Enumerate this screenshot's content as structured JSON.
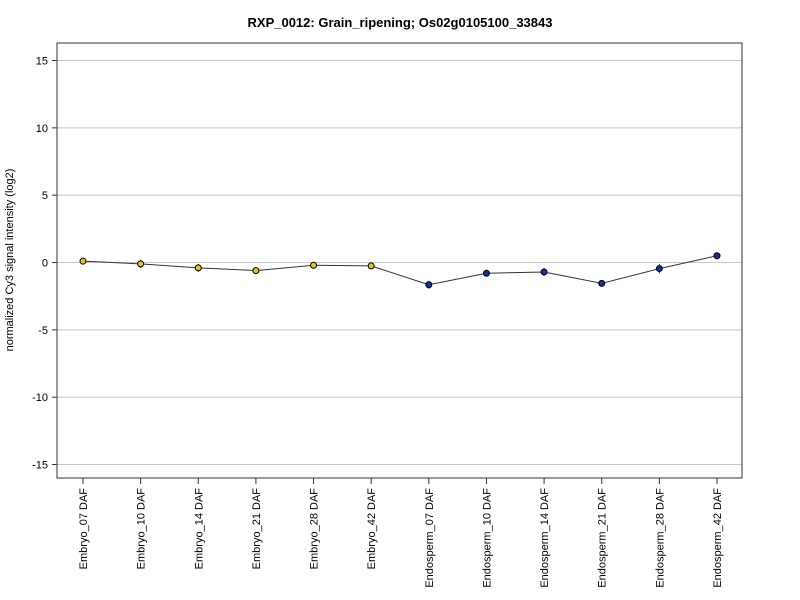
{
  "chart_data": {
    "type": "line",
    "title": "RXP_0012: Grain_ripening; Os02g0105100_33843",
    "xlabel": "",
    "ylabel": "normalized Cy3 signal intensity (log2)",
    "ylim": [
      -16,
      16.3
    ],
    "yticks": [
      15,
      10,
      5,
      0,
      -5,
      -10,
      -15
    ],
    "grid": true,
    "categories": [
      "Embryo_07 DAF",
      "Embryo_10 DAF",
      "Embryo_14 DAF",
      "Embryo_21 DAF",
      "Embryo_28 DAF",
      "Embryo_42 DAF",
      "Endosperm_07 DAF",
      "Endosperm_10 DAF",
      "Endosperm_14 DAF",
      "Endosperm_21 DAF",
      "Endosperm_28 DAF",
      "Endosperm_42 DAF"
    ],
    "values": [
      0.1,
      -0.1,
      -0.4,
      -0.6,
      -0.2,
      -0.25,
      -1.65,
      -0.8,
      -0.7,
      -1.55,
      -0.45,
      0.5
    ],
    "errors": [
      0.15,
      0.3,
      0.3,
      0.15,
      0.15,
      0.15,
      0.3,
      0.15,
      0.3,
      0.15,
      0.35,
      0.15
    ],
    "point_colors": [
      "#e6c619",
      "#e6c619",
      "#e6c619",
      "#e6c619",
      "#e6c619",
      "#e6c619",
      "#1a2f9e",
      "#1a2f9e",
      "#1a2f9e",
      "#1a2f9e",
      "#1a2f9e",
      "#1a2f9e"
    ],
    "line_color": "#333333",
    "grid_color": "#c8c8c8"
  }
}
